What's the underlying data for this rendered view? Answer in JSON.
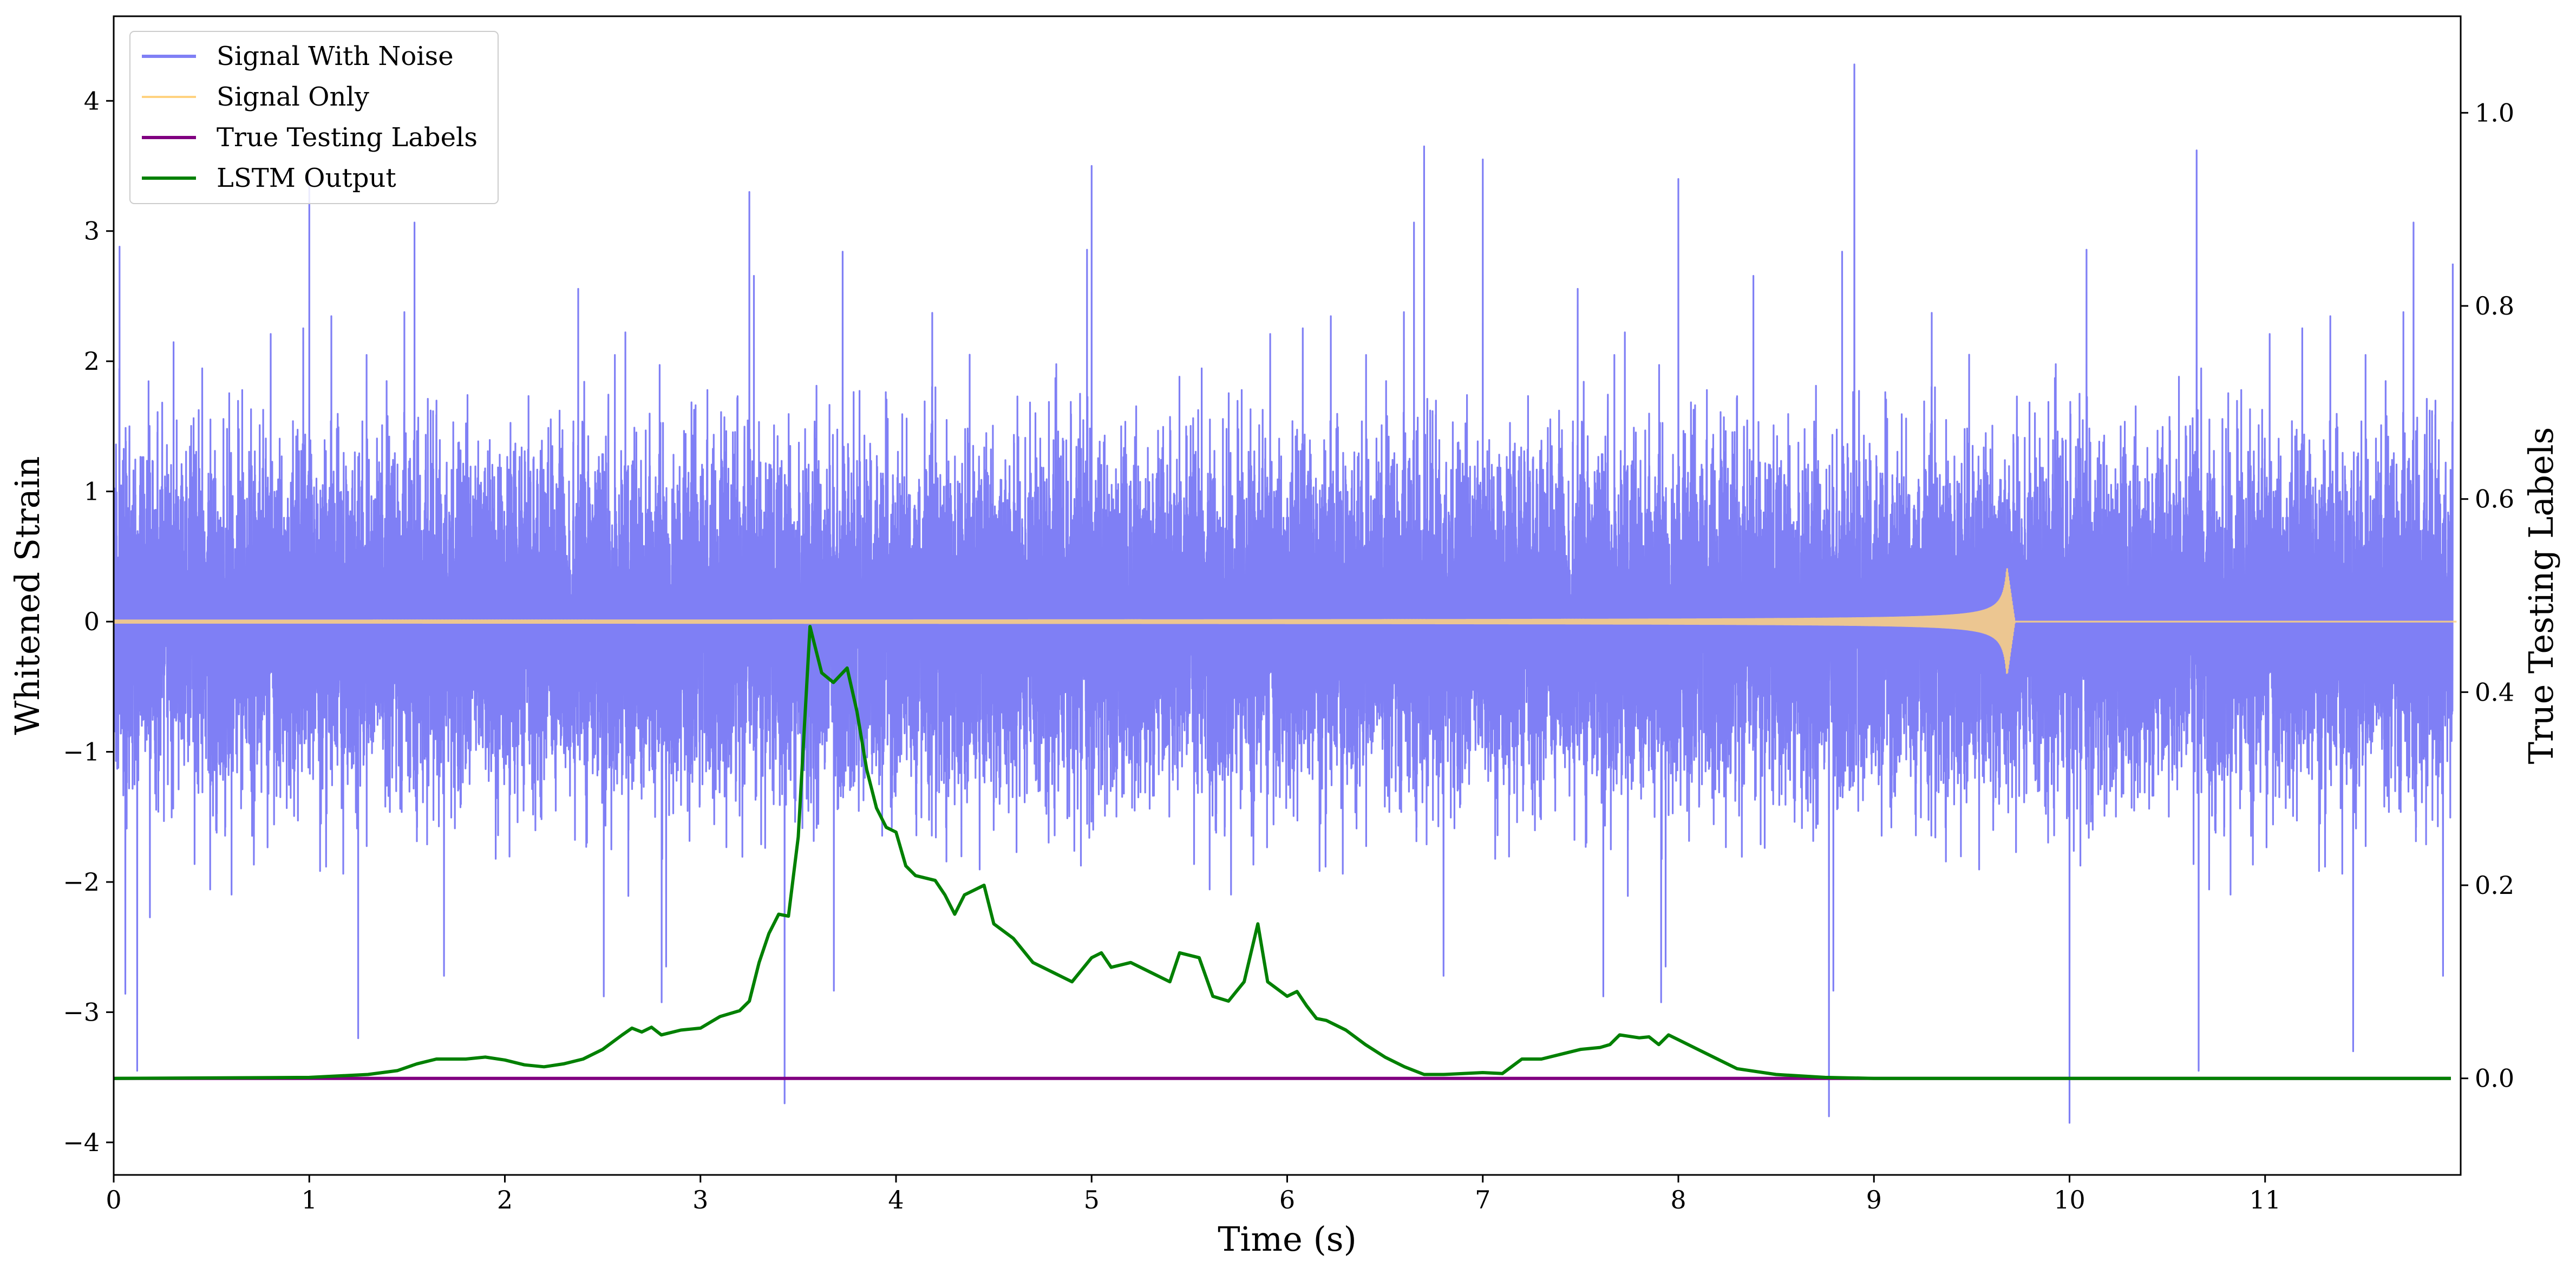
{
  "chart_data": {
    "type": "line",
    "xlabel": "Time (s)",
    "ylabel": "Whitened Strain",
    "y2label": "True Testing Labels",
    "xlim": [
      0,
      12
    ],
    "ylim": [
      -4.25,
      4.65
    ],
    "y2lim": [
      -0.1,
      1.1
    ],
    "x_ticks": [
      0,
      1,
      2,
      3,
      4,
      5,
      6,
      7,
      8,
      9,
      10,
      11
    ],
    "y_ticks": [
      -4,
      -3,
      -2,
      -1,
      0,
      1,
      2,
      3,
      4
    ],
    "y2_ticks": [
      0.0,
      0.2,
      0.4,
      0.6,
      0.8,
      1.0
    ],
    "legend_position": "top-left",
    "grid": false,
    "series": [
      {
        "name": "Signal With Noise",
        "axis": "left",
        "color": "#7f7ff5",
        "sample_rate_hz": 2048,
        "noise_sigma": 0.62,
        "spikes": [
          {
            "t": 0.03,
            "v": 2.88
          },
          {
            "t": 0.12,
            "v": -3.45
          },
          {
            "t": 1.0,
            "v": 3.4
          },
          {
            "t": 1.25,
            "v": -3.2
          },
          {
            "t": 3.25,
            "v": 3.3
          },
          {
            "t": 3.43,
            "v": -3.7
          },
          {
            "t": 5.0,
            "v": 3.5
          },
          {
            "t": 6.7,
            "v": 3.65
          },
          {
            "t": 7.0,
            "v": 3.55
          },
          {
            "t": 8.0,
            "v": 3.4
          },
          {
            "t": 8.77,
            "v": -3.8
          },
          {
            "t": 8.9,
            "v": 4.28
          },
          {
            "t": 10.0,
            "v": -3.85
          },
          {
            "t": 10.65,
            "v": 3.62
          },
          {
            "t": 10.66,
            "v": -3.45
          },
          {
            "t": 11.45,
            "v": -3.3
          },
          {
            "t": 11.98,
            "v": 2.75
          }
        ]
      },
      {
        "name": "Signal Only",
        "axis": "left",
        "color": "#ffd27f",
        "chirp": {
          "t_merger": 9.68,
          "amp_at_merger": 0.42,
          "amp_far": 0.012,
          "ringdown_end": 9.72
        }
      },
      {
        "name": "True Testing Labels",
        "axis": "right",
        "color": "#800080",
        "x": [
          0,
          11.95
        ],
        "values": [
          0,
          0
        ]
      },
      {
        "name": "LSTM Output",
        "axis": "right",
        "color": "#008000",
        "x": [
          0,
          1.0,
          1.3,
          1.45,
          1.55,
          1.65,
          1.8,
          1.9,
          2.0,
          2.1,
          2.2,
          2.3,
          2.4,
          2.5,
          2.6,
          2.65,
          2.7,
          2.75,
          2.8,
          2.9,
          3.0,
          3.05,
          3.1,
          3.2,
          3.25,
          3.3,
          3.35,
          3.4,
          3.45,
          3.5,
          3.56,
          3.62,
          3.68,
          3.75,
          3.8,
          3.85,
          3.9,
          3.95,
          4.0,
          4.05,
          4.1,
          4.2,
          4.25,
          4.3,
          4.35,
          4.45,
          4.5,
          4.6,
          4.7,
          4.8,
          4.85,
          4.9,
          5.0,
          5.05,
          5.1,
          5.2,
          5.3,
          5.35,
          5.4,
          5.45,
          5.55,
          5.62,
          5.7,
          5.78,
          5.85,
          5.9,
          6.0,
          6.05,
          6.1,
          6.15,
          6.2,
          6.3,
          6.4,
          6.5,
          6.6,
          6.7,
          6.8,
          6.9,
          7.0,
          7.1,
          7.2,
          7.3,
          7.4,
          7.5,
          7.6,
          7.65,
          7.7,
          7.8,
          7.85,
          7.9,
          7.95,
          8.0,
          8.1,
          8.2,
          8.3,
          8.5,
          8.75,
          9.0,
          10.0,
          11.0,
          11.95
        ],
        "values": [
          0.0,
          0.001,
          0.004,
          0.008,
          0.015,
          0.02,
          0.02,
          0.022,
          0.019,
          0.014,
          0.012,
          0.015,
          0.02,
          0.03,
          0.045,
          0.052,
          0.048,
          0.053,
          0.045,
          0.05,
          0.052,
          0.058,
          0.064,
          0.07,
          0.08,
          0.12,
          0.15,
          0.17,
          0.168,
          0.25,
          0.468,
          0.42,
          0.41,
          0.425,
          0.38,
          0.32,
          0.28,
          0.26,
          0.255,
          0.22,
          0.21,
          0.205,
          0.19,
          0.17,
          0.19,
          0.2,
          0.16,
          0.145,
          0.12,
          0.11,
          0.105,
          0.1,
          0.125,
          0.13,
          0.115,
          0.12,
          0.11,
          0.105,
          0.1,
          0.13,
          0.125,
          0.085,
          0.08,
          0.1,
          0.16,
          0.1,
          0.085,
          0.09,
          0.075,
          0.062,
          0.06,
          0.05,
          0.035,
          0.022,
          0.012,
          0.004,
          0.004,
          0.005,
          0.006,
          0.005,
          0.02,
          0.02,
          0.025,
          0.03,
          0.032,
          0.035,
          0.045,
          0.042,
          0.043,
          0.035,
          0.045,
          0.04,
          0.03,
          0.02,
          0.01,
          0.004,
          0.001,
          0.0,
          0.0,
          0.0,
          0.0
        ]
      }
    ]
  }
}
